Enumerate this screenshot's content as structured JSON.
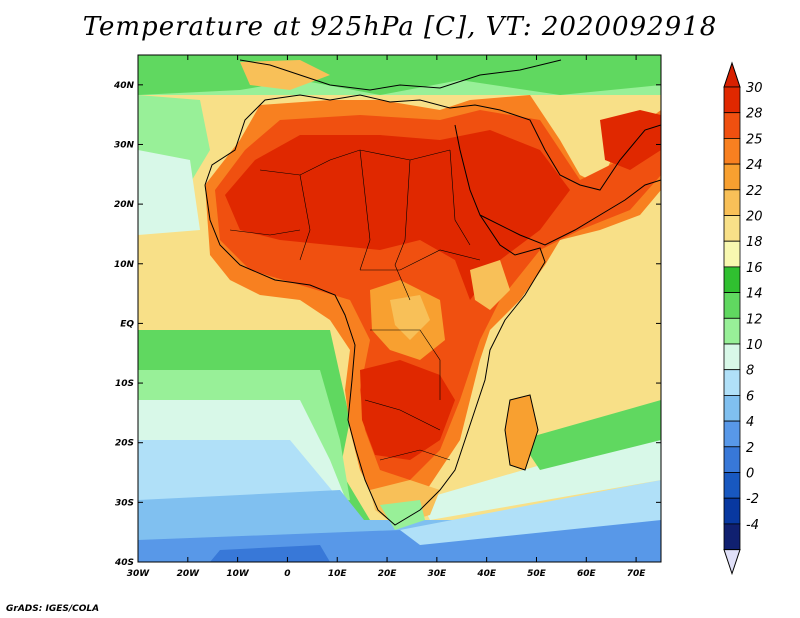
{
  "title": "Temperature at 925hPa [C], VT: 2020092918",
  "credit": "GrADS: IGES/COLA",
  "map": {
    "lon_range": [
      -30,
      75
    ],
    "lat_range": [
      -40,
      45
    ],
    "x_ticks": [
      {
        "lon": -30,
        "label": "30W"
      },
      {
        "lon": -20,
        "label": "20W"
      },
      {
        "lon": -10,
        "label": "10W"
      },
      {
        "lon": 0,
        "label": "0"
      },
      {
        "lon": 10,
        "label": "10E"
      },
      {
        "lon": 20,
        "label": "20E"
      },
      {
        "lon": 30,
        "label": "30E"
      },
      {
        "lon": 40,
        "label": "40E"
      },
      {
        "lon": 50,
        "label": "50E"
      },
      {
        "lon": 60,
        "label": "60E"
      },
      {
        "lon": 70,
        "label": "70E"
      }
    ],
    "y_ticks": [
      {
        "lat": 40,
        "label": "40N"
      },
      {
        "lat": 30,
        "label": "30N"
      },
      {
        "lat": 20,
        "label": "20N"
      },
      {
        "lat": 10,
        "label": "10N"
      },
      {
        "lat": 0,
        "label": "EQ"
      },
      {
        "lat": -10,
        "label": "10S"
      },
      {
        "lat": -20,
        "label": "20S"
      },
      {
        "lat": -30,
        "label": "30S"
      },
      {
        "lat": -40,
        "label": "40S"
      }
    ]
  },
  "colorbar": {
    "labels": [
      "30",
      "28",
      "25",
      "24",
      "22",
      "20",
      "18",
      "16",
      "14",
      "12",
      "10",
      "8",
      "6",
      "4",
      "2",
      "0",
      "-2",
      "-4"
    ],
    "colors": [
      "#e02800",
      "#f05010",
      "#f88020",
      "#f8a030",
      "#f8c058",
      "#f8e088",
      "#f8f8b0",
      "#30c030",
      "#60d860",
      "#98f098",
      "#d8f8e8",
      "#b0e0f8",
      "#80c0f0",
      "#5898e8",
      "#3878d8",
      "#1858c0",
      "#0838a0",
      "#102070"
    ],
    "top_color": "#d82000",
    "bottom_color": "#e0e0f8"
  }
}
